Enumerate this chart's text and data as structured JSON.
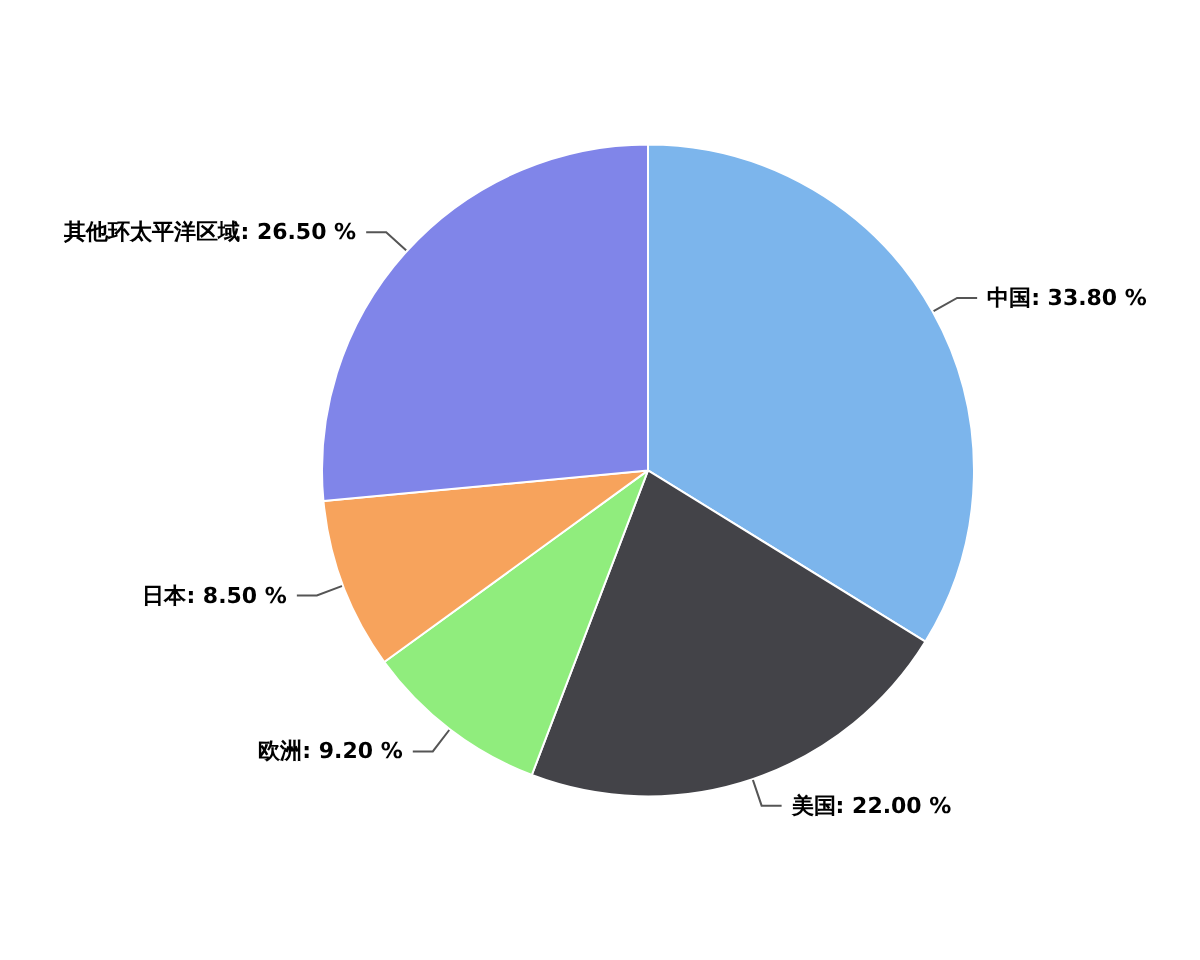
{
  "chart_data": {
    "type": "pie",
    "categories": [
      "中国",
      "美国",
      "欧洲",
      "日本",
      "其他环太平洋区域"
    ],
    "values": [
      33.8,
      22.0,
      9.2,
      8.5,
      26.5
    ],
    "colors": [
      "#7cb5ec",
      "#434348",
      "#90ed7d",
      "#f7a35c",
      "#8085e9"
    ],
    "value_labels": [
      "33.80 %",
      "22.00 %",
      "9.20 %",
      "8.50 %",
      "26.50 %"
    ],
    "legend": false
  }
}
